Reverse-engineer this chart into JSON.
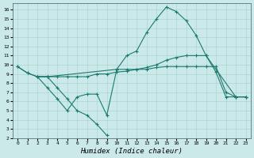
{
  "xlabel": "Humidex (Indice chaleur)",
  "background_color": "#cce9e9",
  "grid_color": "#aad4d4",
  "line_color": "#1a7a6e",
  "xlim": [
    -0.5,
    23.5
  ],
  "ylim": [
    2,
    16.7
  ],
  "xticks": [
    0,
    1,
    2,
    3,
    4,
    5,
    6,
    7,
    8,
    9,
    10,
    11,
    12,
    13,
    14,
    15,
    16,
    17,
    18,
    19,
    20,
    21,
    22,
    23
  ],
  "yticks": [
    2,
    3,
    4,
    5,
    6,
    7,
    8,
    9,
    10,
    11,
    12,
    13,
    14,
    15,
    16
  ],
  "series": [
    {
      "x": [
        0,
        1,
        2,
        3,
        4,
        5,
        6,
        7,
        8,
        9,
        10,
        11,
        12,
        13,
        14,
        15,
        16,
        17,
        18,
        19,
        20,
        21,
        22,
        23
      ],
      "y": [
        9.8,
        9.1,
        8.7,
        8.7,
        8.7,
        8.7,
        8.7,
        8.7,
        9.0,
        9.0,
        9.2,
        9.3,
        9.5,
        9.7,
        10.0,
        10.5,
        10.8,
        11.0,
        11.0,
        11.0,
        9.2,
        6.5,
        6.5,
        6.5
      ]
    },
    {
      "x": [
        0,
        1,
        2,
        3,
        10,
        11,
        12,
        13,
        14,
        15,
        16,
        17,
        18,
        19,
        22,
        23
      ],
      "y": [
        9.8,
        9.1,
        8.7,
        8.7,
        9.5,
        11.0,
        11.5,
        13.5,
        15.0,
        16.3,
        15.8,
        14.8,
        13.2,
        11.0,
        6.5,
        6.5
      ]
    },
    {
      "x": [
        2,
        3,
        4,
        5,
        6,
        7,
        8,
        9
      ],
      "y": [
        8.7,
        8.7,
        7.5,
        6.3,
        5.0,
        4.5,
        3.5,
        2.3
      ]
    },
    {
      "x": [
        2,
        3,
        4,
        5,
        6,
        7,
        8,
        9,
        10,
        11,
        12,
        13,
        14,
        15,
        16,
        17,
        18,
        19,
        20,
        21,
        22,
        23
      ],
      "y": [
        8.7,
        7.5,
        6.3,
        5.0,
        6.5,
        6.8,
        6.8,
        4.5,
        9.5,
        9.5,
        9.5,
        9.5,
        9.7,
        9.8,
        9.8,
        9.8,
        9.8,
        9.8,
        9.8,
        7.0,
        6.5,
        6.5
      ]
    }
  ]
}
